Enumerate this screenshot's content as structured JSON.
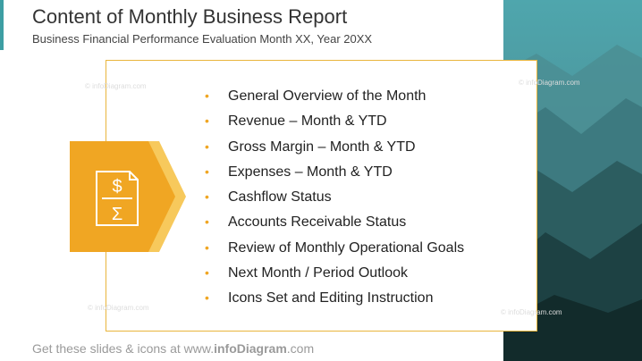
{
  "header": {
    "title": "Content of Monthly Business Report",
    "subtitle": "Business Financial Performance Evaluation Month XX, Year 20XX"
  },
  "list": {
    "items": [
      "General Overview of the Month",
      "Revenue – Month & YTD",
      "Gross Margin – Month & YTD",
      "Expenses – Month & YTD",
      "Cashflow Status",
      "Accounts Receivable Status",
      "Review of Monthly Operational Goals",
      "Next Month / Period Outlook",
      "Icons Set and Editing Instruction"
    ]
  },
  "icon": {
    "dollar": "$",
    "sigma": "Σ"
  },
  "watermark": "© infoDiagram.com",
  "footer": {
    "prefix": "Get these slides & icons at www.",
    "brand": "infoDiagram",
    "suffix": ".com"
  }
}
